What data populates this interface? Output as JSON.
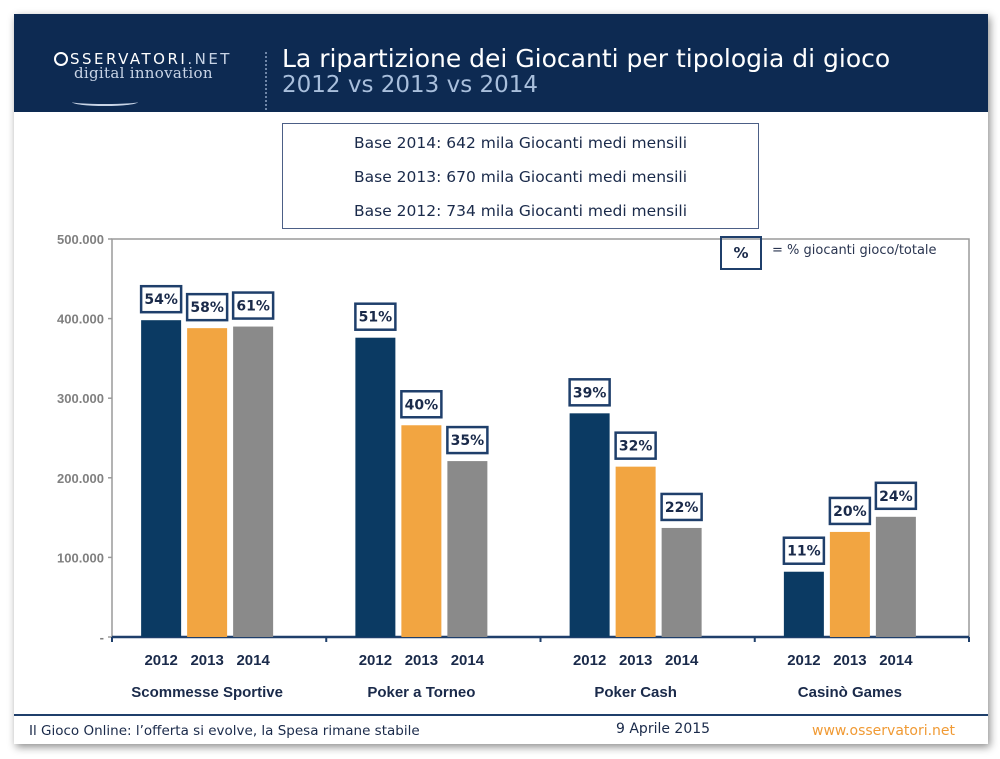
{
  "header": {
    "logo_top": "SSERVATORI",
    "logo_net": ".NET",
    "logo_bottom": "digital innovation",
    "title": "La ripartizione dei Giocanti per tipologia di gioco",
    "subtitle": "2012 vs 2013 vs 2014"
  },
  "base_box": {
    "lines": [
      "Base 2014: 642 mila Giocanti medi mensili",
      "Base 2013: 670 mila Giocanti medi mensili",
      "Base 2012: 734 mila Giocanti medi mensili"
    ]
  },
  "legend": {
    "symbol": "%",
    "text": "= % giocanti gioco/totale"
  },
  "footer": {
    "left": "Il Gioco Online: l’offerta si evolve, la Spesa rimane stabile",
    "date": "9 Aprile 2015",
    "url": "www.osservatori.net"
  },
  "colors": {
    "header_bg": "#0d2a52",
    "series_2012": "#0b3a63",
    "series_2013": "#f2a541",
    "series_2014": "#8a8a8a",
    "axis": "#1f3f6b",
    "url": "#f09a34"
  },
  "chart_data": {
    "type": "bar",
    "title": "La ripartizione dei Giocanti per tipologia di gioco",
    "subtitle": "2012 vs 2013 vs 2014",
    "xlabel": "",
    "ylabel": "",
    "categories": [
      "Scommesse Sportive",
      "Poker a Torneo",
      "Poker Cash",
      "Casinò Games"
    ],
    "series": [
      {
        "name": "2012",
        "color": "#0b3a63",
        "values": [
          398000,
          376000,
          281000,
          82000
        ],
        "labels": [
          "54%",
          "51%",
          "39%",
          "11%"
        ]
      },
      {
        "name": "2013",
        "color": "#f2a541",
        "values": [
          388000,
          266000,
          214000,
          132000
        ],
        "labels": [
          "58%",
          "40%",
          "32%",
          "20%"
        ]
      },
      {
        "name": "2014",
        "color": "#8a8a8a",
        "values": [
          390000,
          221000,
          137000,
          151000
        ],
        "labels": [
          "61%",
          "35%",
          "22%",
          "24%"
        ]
      }
    ],
    "ylim": [
      0,
      500000
    ],
    "yticks": [
      0,
      100000,
      200000,
      300000,
      400000,
      500000
    ],
    "ytick_labels": [
      "-",
      "100.000",
      "200.000",
      "300.000",
      "400.000",
      "500.000"
    ],
    "grid": false,
    "legend": "top-right"
  }
}
